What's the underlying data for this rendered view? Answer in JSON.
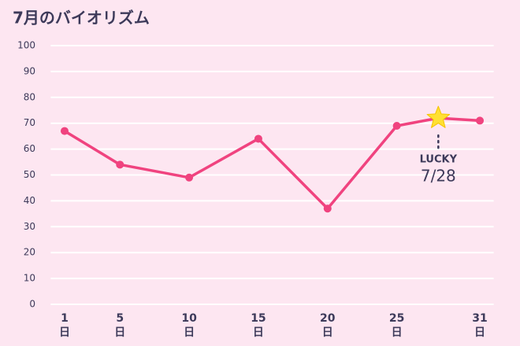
{
  "chart_data": {
    "type": "line",
    "title": "7月のバイオリズム",
    "x": [
      1,
      5,
      10,
      15,
      20,
      25,
      28,
      31
    ],
    "series": [
      {
        "name": "バイオリズム",
        "color": "#f0437f",
        "values": [
          67,
          54,
          49,
          64,
          37,
          69,
          72,
          71
        ]
      }
    ],
    "xlim": [
      0,
      32
    ],
    "xticks": [
      1,
      5,
      10,
      15,
      20,
      25,
      31
    ],
    "x_unit": "日",
    "ylim": [
      0,
      100
    ],
    "yticks": [
      0,
      10,
      20,
      30,
      40,
      50,
      60,
      70,
      80,
      90,
      100
    ],
    "grid": true,
    "annotation": {
      "x": 28,
      "label": "LUCKY",
      "date": "7/28",
      "color": "#ffe033"
    }
  }
}
